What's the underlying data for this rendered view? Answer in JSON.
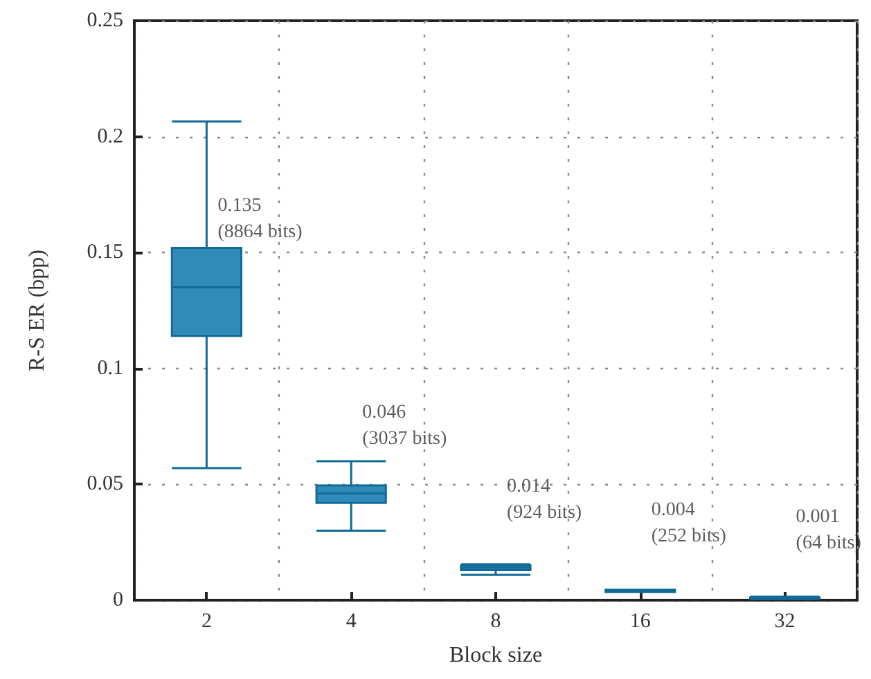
{
  "chart_data": {
    "type": "box",
    "xlabel": "Block size",
    "ylabel": "R-S ER (bpp)",
    "categories": [
      "2",
      "4",
      "8",
      "16",
      "32"
    ],
    "color": "#318bb8",
    "boxes": [
      {
        "low": 0.057,
        "q1": 0.114,
        "median": 0.135,
        "q3": 0.152,
        "high": 0.2065
      },
      {
        "low": 0.03,
        "q1": 0.042,
        "median": 0.046,
        "q3": 0.0495,
        "high": 0.06
      },
      {
        "low": 0.011,
        "q1": 0.013,
        "median": 0.014,
        "q3": 0.015,
        "high": 0.0155
      },
      {
        "low": 0.0035,
        "q1": 0.0035,
        "median": 0.004,
        "q3": 0.0045,
        "high": 0.0045
      },
      {
        "low": 0.0005,
        "q1": 0.0008,
        "median": 0.001,
        "q3": 0.0012,
        "high": 0.0015
      }
    ],
    "ylim": [
      0,
      0.25
    ],
    "yticks": [
      0,
      0.05,
      0.1,
      0.15,
      0.2,
      0.25
    ],
    "grid": true,
    "annotations": [
      "0.135\n(8864 bits)",
      "0.046\n(3037 bits)",
      "0.014\n(924 bits)",
      "0.004\n(252 bits)",
      "0.001\n(64 bits)"
    ]
  }
}
